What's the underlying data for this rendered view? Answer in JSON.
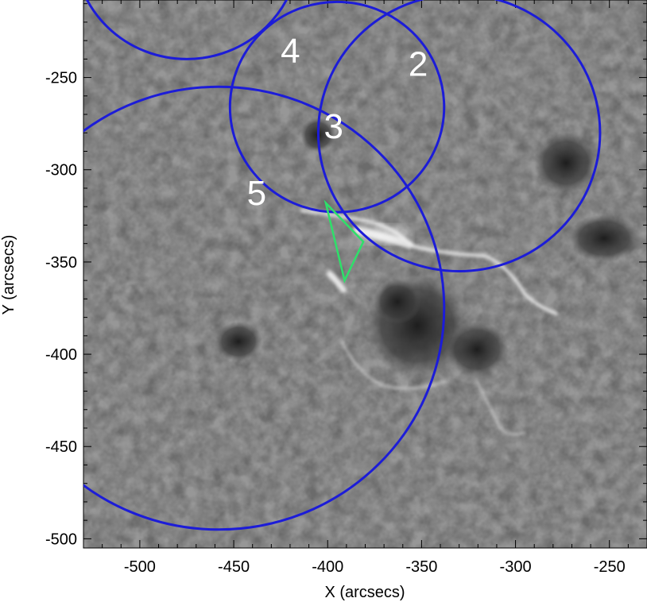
{
  "figure": {
    "x_axis_label": "X (arcsecs)",
    "y_axis_label": "Y (arcsecs)",
    "x_ticks": [
      "-500",
      "-450",
      "-400",
      "-350",
      "-300",
      "-250"
    ],
    "y_ticks": [
      "-250",
      "-300",
      "-350",
      "-400",
      "-450",
      "-500"
    ],
    "x_range": [
      -530,
      -230
    ],
    "y_range": [
      -505,
      -208
    ],
    "contour_color": "#1c1cd8",
    "polygon_color": "#2ee06a",
    "contours": [
      {
        "label": "2",
        "center_x": -330,
        "center_y": -280,
        "radius": 75
      },
      {
        "label": "3",
        "center_x": -458,
        "center_y": -375,
        "radius": 120
      },
      {
        "label": "4",
        "center_x": -475,
        "center_y": -180,
        "radius": 60
      },
      {
        "label": "5",
        "center_x": -395,
        "center_y": -266,
        "radius": 57
      }
    ],
    "polygon_arcsec": [
      [
        -401,
        -318
      ],
      [
        -381,
        -339
      ],
      [
        -391,
        -360
      ]
    ]
  }
}
